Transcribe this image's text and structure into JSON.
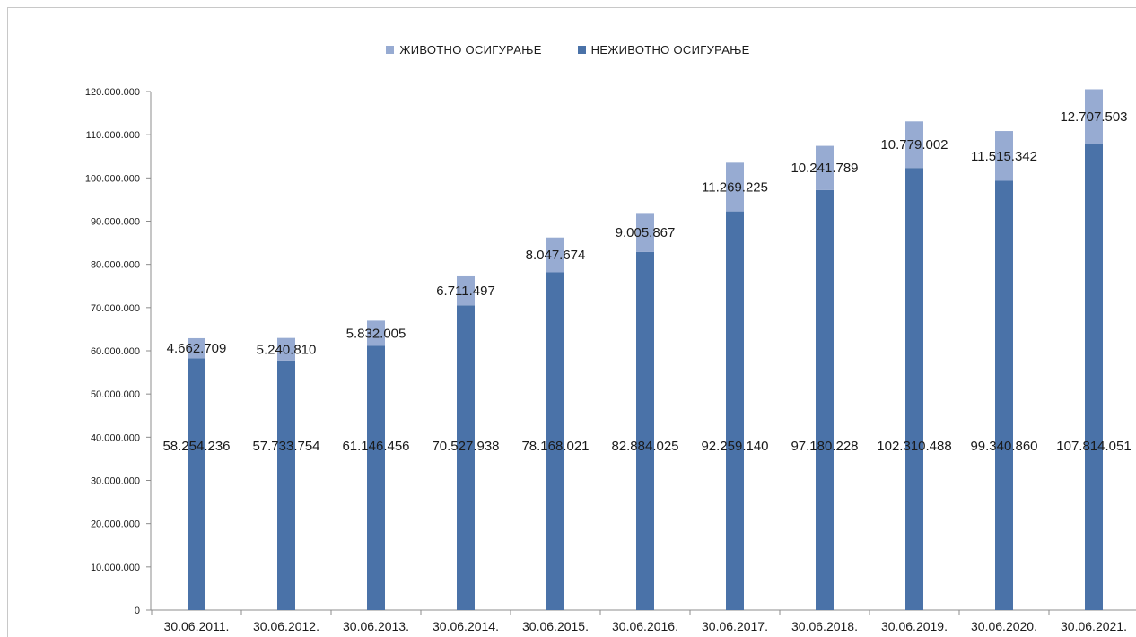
{
  "chart_data": {
    "type": "bar",
    "stacked": true,
    "categories": [
      "30.06.2011.",
      "30.06.2012.",
      "30.06.2013.",
      "30.06.2014.",
      "30.06.2015.",
      "30.06.2016.",
      "30.06.2017.",
      "30.06.2018.",
      "30.06.2019.",
      "30.06.2020.",
      "30.06.2021."
    ],
    "series": [
      {
        "name": "НЕЖИВОТНО ОСИГУРАЊЕ",
        "color": "#4a72a8",
        "values": [
          58254236,
          57733754,
          61146456,
          70527938,
          78168021,
          82884025,
          92259140,
          97180228,
          102310488,
          99340860,
          107814051
        ],
        "labels": [
          "58.254.236",
          "57.733.754",
          "61.146.456",
          "70.527.938",
          "78.168.021",
          "82.884.025",
          "92.259.140",
          "97.180.228",
          "102.310.488",
          "99.340.860",
          "107.814.051"
        ]
      },
      {
        "name": "ЖИВОТНО ОСИГУРАЊЕ",
        "color": "#97abd2",
        "values": [
          4662709,
          5240810,
          5832005,
          6711497,
          8047674,
          9005867,
          11269225,
          10241789,
          10779002,
          11515342,
          12707503
        ],
        "labels": [
          "4.662.709",
          "5.240.810",
          "5.832.005",
          "6.711.497",
          "8.047.674",
          "9.005.867",
          "11.269.225",
          "10.241.789",
          "10.779.002",
          "11.515.342",
          "12.707.503"
        ]
      }
    ],
    "legend_order": [
      "ЖИВОТНО ОСИГУРАЊЕ",
      "НЕЖИВОТНО ОСИГУРАЊЕ"
    ],
    "legend_position": "top",
    "ylim": [
      0,
      120000000
    ],
    "yticks": [
      0,
      10000000,
      20000000,
      30000000,
      40000000,
      50000000,
      60000000,
      70000000,
      80000000,
      90000000,
      100000000,
      110000000,
      120000000
    ],
    "ytick_labels": [
      "0",
      "10.000.000",
      "20.000.000",
      "30.000.000",
      "40.000.000",
      "50.000.000",
      "60.000.000",
      "70.000.000",
      "80.000.000",
      "90.000.000",
      "100.000.000",
      "110.000.000",
      "120.000.000"
    ],
    "grid": false,
    "title": "",
    "xlabel": "",
    "ylabel": ""
  }
}
